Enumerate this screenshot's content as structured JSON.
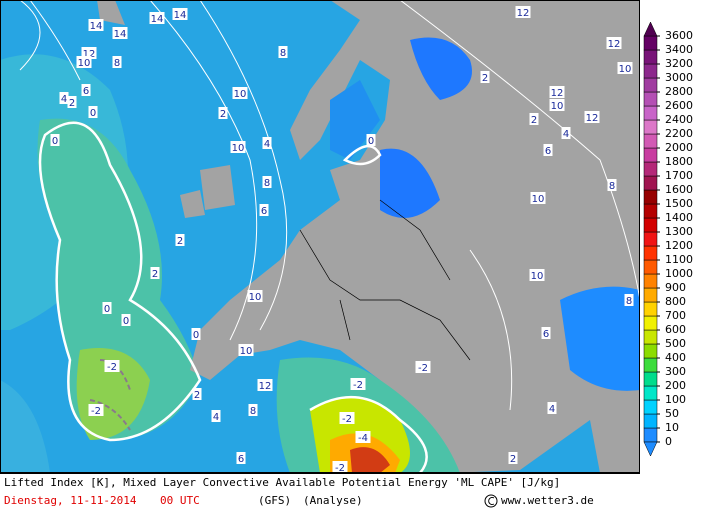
{
  "legend": {
    "levels": [
      0,
      10,
      50,
      100,
      200,
      300,
      400,
      500,
      600,
      700,
      800,
      900,
      1000,
      1100,
      1200,
      1300,
      1400,
      1500,
      1600,
      1700,
      1800,
      2000,
      2200,
      2400,
      2600,
      2800,
      3000,
      3200,
      3400,
      3600
    ],
    "colors": [
      "#1e8cff",
      "#00b4ff",
      "#00d2ff",
      "#00e6c8",
      "#00dc8c",
      "#3cdc3c",
      "#8cdc00",
      "#c8e600",
      "#f0f000",
      "#ffd200",
      "#ffaa00",
      "#ff8200",
      "#ff5a00",
      "#ff3200",
      "#f01414",
      "#d20000",
      "#b40000",
      "#960000",
      "#a01450",
      "#b42878",
      "#c83ca0",
      "#d25ab4",
      "#dc78c8",
      "#c864c8",
      "#b450b4",
      "#a03ca0",
      "#8c288c",
      "#781478",
      "#640064",
      "#500050"
    ]
  },
  "contour_labels": [
    "14",
    "14",
    "14",
    "14",
    "12",
    "10",
    "8",
    "6",
    "4",
    "2",
    "0",
    "0",
    "10",
    "8",
    "12",
    "12",
    "10",
    "12",
    "10",
    "12",
    "8",
    "10",
    "6",
    "4",
    "2",
    "2",
    "0",
    "0",
    "0",
    "0",
    "-2",
    "-2",
    "-2",
    "-2",
    "-2",
    "-4",
    "-2",
    "2",
    "4",
    "6",
    "8",
    "10",
    "12",
    "10",
    "8",
    "6",
    "4",
    "2",
    "2",
    "2",
    "10",
    "10",
    "8",
    "6",
    "4",
    "2"
  ],
  "footer": {
    "title": "Lifted Index [K], Mixed Layer Convective Available Potential Energy 'ML CAPE' [J/kg]",
    "date": "Dienstag, 11-11-2014",
    "time": "00 UTC",
    "model": "(GFS)",
    "run": "(Analyse)",
    "credit": "www.wetter3.de"
  }
}
